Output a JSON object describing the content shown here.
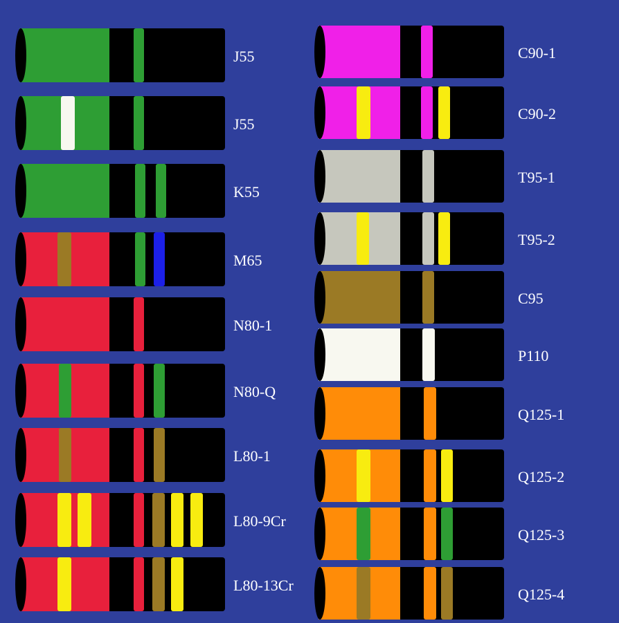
{
  "left": [
    "J55",
    "J55",
    "K55",
    "M65",
    "N80-1",
    "N80-Q",
    "L80-1",
    "L80-9Cr",
    "L80-13Cr"
  ],
  "right": [
    "C90-1",
    "C90-2",
    "T95-1",
    "T95-2",
    "C95",
    "P110",
    "Q125-1",
    "Q125-2",
    "Q125-3",
    "Q125-4"
  ]
}
